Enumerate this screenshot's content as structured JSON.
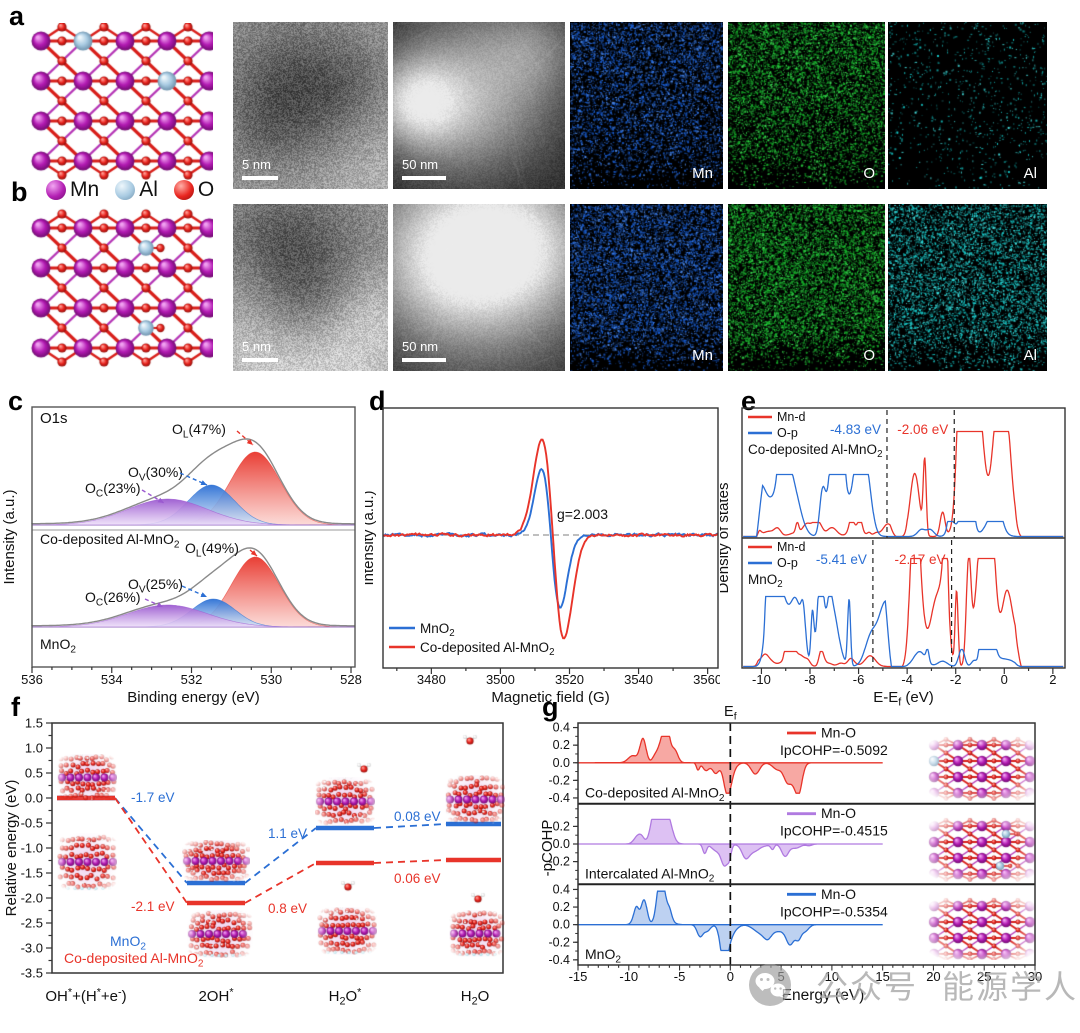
{
  "panels": {
    "a": {
      "label": "a"
    },
    "b": {
      "label": "b"
    },
    "c": {
      "label": "c"
    },
    "d": {
      "label": "d"
    },
    "e": {
      "label": "e"
    },
    "f": {
      "label": "f"
    },
    "g": {
      "label": "g"
    }
  },
  "panel_a": {
    "tem_scale": "5 nm",
    "stem_scale": "50 nm",
    "map_labels": [
      "Mn",
      "O",
      "Al"
    ]
  },
  "panel_b": {
    "tem_scale": "5 nm",
    "stem_scale": "50 nm",
    "map_labels": [
      "Mn",
      "O",
      "Al"
    ]
  },
  "atom_legend": [
    {
      "name": "Mn",
      "color": "#b421b4"
    },
    {
      "name": "Al",
      "color": "#a9cbe2"
    },
    {
      "name": "O",
      "color": "#e9251f"
    }
  ],
  "colors": {
    "red": "#e8342a",
    "blue": "#2b6fd4",
    "purple": "#9b59d0",
    "eds_mn": "#1a5fd6",
    "eds_o": "#17b62c",
    "eds_al": "#16c9c9"
  },
  "watermark": {
    "icon": "wechat-icon",
    "text_1": "公众号",
    "text_2": "能源学人"
  },
  "chart_data": [
    {
      "id": "xps",
      "panel": "c",
      "type": "area",
      "title": "O1s",
      "xlabel": "Binding energy (eV)",
      "ylabel": "Intensity (a.u.)",
      "x_ticks": [
        536,
        534,
        532,
        530,
        528
      ],
      "x_range": [
        536,
        527.9
      ],
      "spectra": [
        {
          "name": "Co-deposited Al-MnO~2~",
          "peaks": [
            {
              "label": "O~L~(47%)",
              "center": 530.4,
              "width": 0.62,
              "height": 73,
              "color": "#e8342a"
            },
            {
              "label": "O~V~(30%)",
              "center": 531.5,
              "width": 0.58,
              "height": 40,
              "color": "#2b6fd4"
            },
            {
              "label": "O~C~(23%)",
              "center": 532.6,
              "width": 1.0,
              "height": 26,
              "color": "#9b59d0"
            }
          ]
        },
        {
          "name": "MnO~2~",
          "peaks": [
            {
              "label": "O~L~(49%)",
              "center": 530.4,
              "width": 0.6,
              "height": 70,
              "color": "#e8342a"
            },
            {
              "label": "O~V~(25%)",
              "center": 531.45,
              "width": 0.55,
              "height": 28,
              "color": "#2b6fd4"
            },
            {
              "label": "O~C~(26%)",
              "center": 532.6,
              "width": 1.0,
              "height": 22,
              "color": "#9b59d0"
            }
          ]
        }
      ]
    },
    {
      "id": "epr",
      "panel": "d",
      "type": "line",
      "xlabel": "Magnetic field (G)",
      "ylabel": "Intensity (a.u.)",
      "x_ticks": [
        3480,
        3500,
        3520,
        3540,
        3560
      ],
      "x_range": [
        3466,
        3563
      ],
      "annotation": "g=2.003",
      "series": [
        {
          "name": "MnO~2~",
          "color": "#2b6fd4",
          "center": 3514.6,
          "width": 2.7,
          "amp_up": 66,
          "amp_down": 73
        },
        {
          "name": "Co-deposited Al-MnO~2~",
          "color": "#e8342a",
          "center": 3515.2,
          "width": 3.2,
          "amp_up": 96,
          "amp_down": 104
        }
      ]
    },
    {
      "id": "dos",
      "panel": "e",
      "type": "line",
      "xlabel": "E-E~f~ (eV)",
      "ylabel": "Density of states",
      "x_ticks": [
        -10,
        -8,
        -6,
        -4,
        -2,
        0,
        2
      ],
      "x_range": [
        -10.8,
        2.5
      ],
      "panels": [
        {
          "name": "Co-deposited Al-MnO~2~",
          "dashes": [
            -4.83,
            -2.06
          ],
          "seed": 7,
          "ann": [
            {
              "text": "-4.83 eV",
              "color": "#2b6fd4"
            },
            {
              "text": "-2.06 eV",
              "color": "#e8342a"
            }
          ],
          "series": [
            {
              "name": "Mn-d",
              "color": "#e8342a",
              "bands": [
                {
                  "from": -10.2,
                  "to": -4.6,
                  "max": 14
                },
                {
                  "from": -4.25,
                  "to": 0.55,
                  "max": 105
                }
              ]
            },
            {
              "name": "O-p",
              "color": "#2b6fd4",
              "bands": [
                {
                  "from": -10.2,
                  "to": -4.6,
                  "max": 62
                },
                {
                  "from": -4.25,
                  "to": 0.55,
                  "max": 15
                }
              ]
            }
          ]
        },
        {
          "name": "MnO~2~",
          "dashes": [
            -5.41,
            -2.17
          ],
          "seed": 13,
          "ann": [
            {
              "text": "-5.41 eV",
              "color": "#2b6fd4"
            },
            {
              "text": "-2.17 eV",
              "color": "#e8342a"
            }
          ],
          "series": [
            {
              "name": "Mn-d",
              "color": "#e8342a",
              "bands": [
                {
                  "from": -10.4,
                  "to": -4.8,
                  "max": 15
                },
                {
                  "from": -4.2,
                  "to": 0.55,
                  "max": 108
                }
              ]
            },
            {
              "name": "O-p",
              "color": "#2b6fd4",
              "bands": [
                {
                  "from": -10.4,
                  "to": -4.8,
                  "max": 70
                },
                {
                  "from": -4.2,
                  "to": 0.55,
                  "max": 17
                }
              ]
            }
          ]
        }
      ]
    },
    {
      "id": "energy",
      "panel": "f",
      "type": "line",
      "ylabel": "Relative energy (eV)",
      "ylim": [
        -3.5,
        1.5
      ],
      "y_step": 0.5,
      "states": [
        "OH^*^+(H^*^+e^-^)",
        "2OH^*^",
        "H~2~O^*^",
        "H~2~O"
      ],
      "series": [
        {
          "name": "MnO~2~",
          "color": "#2b6fd4",
          "levels": [
            0.0,
            -1.7,
            -0.6,
            -0.52
          ]
        },
        {
          "name": "Co-deposited Al-MnO~2~",
          "color": "#e8342a",
          "levels": [
            0.0,
            -2.1,
            -1.3,
            -1.24
          ]
        }
      ],
      "step_labels": [
        {
          "text": "-1.7 eV",
          "color": "#2b6fd4"
        },
        {
          "text": "-2.1 eV",
          "color": "#e8342a"
        },
        {
          "text": "1.1 eV",
          "color": "#2b6fd4"
        },
        {
          "text": "0.8 eV",
          "color": "#e8342a"
        },
        {
          "text": "0.08 eV",
          "color": "#2b6fd4"
        },
        {
          "text": "0.06 eV",
          "color": "#e8342a"
        }
      ]
    },
    {
      "id": "cohp",
      "panel": "g",
      "type": "area",
      "xlabel": "Energy (eV)",
      "ylabel": "-pCOHP",
      "fermi_label": "E~f~",
      "x_ticks": [
        -15,
        -10,
        -5,
        0,
        5,
        10,
        15,
        20,
        25,
        30
      ],
      "x_range": [
        -15,
        30
      ],
      "panels": [
        {
          "name": "Co-deposited Al-MnO~2~",
          "bond": "Mn-O",
          "ipcohp": "IpCOHP=-0.5092",
          "color": "#e8342a",
          "fill": "#f5928c",
          "y_ticks": [
            0.4,
            0.2,
            0.0,
            -0.2,
            -0.4
          ],
          "seed": 3,
          "pos_band": {
            "from": -10,
            "to": -4.8,
            "max": 0.3
          },
          "neg_band": {
            "from": -3.2,
            "to": 8.2,
            "max": 0.33
          },
          "pos_spikes": [
            {
              "at": -8.6,
              "h": 0.27,
              "w": 0.3
            },
            {
              "at": -6.5,
              "h": 0.29,
              "w": 0.5
            }
          ],
          "neg_deep": {
            "at": -0.3,
            "h": 0.31
          }
        },
        {
          "name": "Intercalated Al-MnO~2~",
          "bond": "Mn-O",
          "ipcohp": "IpCOHP=-0.4515",
          "color": "#b07ae0",
          "fill": "#d4b2f0",
          "y_ticks": [
            0.2,
            0.0,
            -0.2
          ],
          "seed": 11,
          "pos_band": {
            "from": -9.5,
            "to": -4.5,
            "max": 0.28
          },
          "neg_band": {
            "from": -2.8,
            "to": 8.0,
            "max": 0.25
          },
          "pos_spikes": [
            {
              "at": -7.5,
              "h": 0.18,
              "w": 0.4
            },
            {
              "at": -6.2,
              "h": 0.28,
              "w": 0.45
            }
          ],
          "neg_deep": {
            "at": -0.55,
            "h": 0.24
          }
        },
        {
          "name": "MnO~2~",
          "bond": "Mn-O",
          "ipcohp": "IpCOHP=-0.5354",
          "color": "#2b6fd4",
          "fill": "#adc6ee",
          "y_ticks": [
            0.4,
            0.2,
            0.0,
            -0.2,
            -0.4
          ],
          "seed": 19,
          "pos_band": {
            "from": -9.6,
            "to": -5.2,
            "max": 0.38
          },
          "neg_band": {
            "from": -3.0,
            "to": 8.0,
            "max": 0.28
          },
          "pos_spikes": [
            {
              "at": -8.5,
              "h": 0.28,
              "w": 0.3
            },
            {
              "at": -6.8,
              "h": 0.36,
              "w": 0.35
            }
          ],
          "neg_deep": {
            "at": -0.5,
            "h": 0.26
          },
          "neg_extra": {
            "at": 5.9,
            "h": 0.22
          }
        }
      ]
    }
  ]
}
